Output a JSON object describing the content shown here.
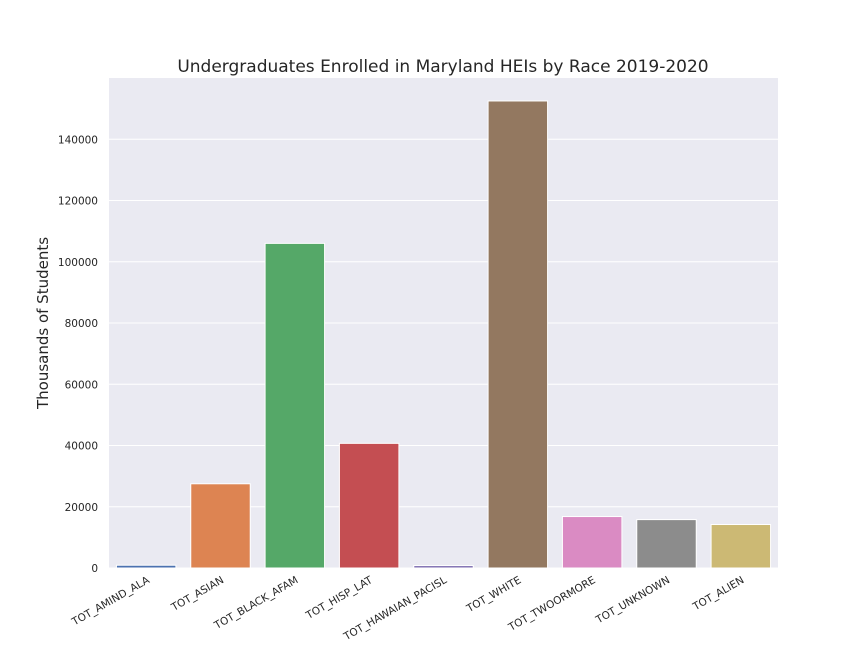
{
  "chart_data": {
    "type": "bar",
    "title": "Undergraduates Enrolled in Maryland HEIs by Race 2019-2020",
    "xlabel": "",
    "ylabel": "Thousands of Students",
    "categories": [
      "TOT_AMIND_ALA",
      "TOT_ASIAN",
      "TOT_BLACK_AFAM",
      "TOT_HISP_LAT",
      "TOT_HAWAIAN_PACISL",
      "TOT_WHITE",
      "TOT_TWOORMORE",
      "TOT_UNKNOWN",
      "TOT_ALIEN"
    ],
    "values": [
      900,
      27500,
      106000,
      40700,
      800,
      152500,
      16800,
      15800,
      14200
    ],
    "colors": [
      "#4c72b0",
      "#dd8452",
      "#55a868",
      "#c44e52",
      "#8172b3",
      "#937860",
      "#da8bc3",
      "#8c8c8c",
      "#ccb974"
    ],
    "ylim": [
      0,
      160000
    ],
    "yticks": [
      0,
      20000,
      40000,
      60000,
      80000,
      100000,
      120000,
      140000
    ],
    "grid": true,
    "background": "#eaeaf2"
  }
}
